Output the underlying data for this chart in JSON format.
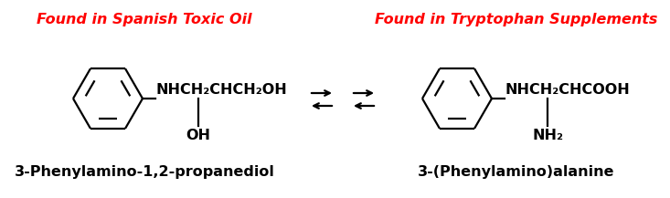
{
  "title_left": "Found in Spanish Toxic Oil",
  "title_right": "Found in Tryptophan Supplements",
  "title_color": "#ff0000",
  "title_fontsize": 11.5,
  "title_style": "italic",
  "title_weight": "bold",
  "name_left": "3-Phenylamino-1,2-propanediol",
  "name_right": "3-(Phenylamino)alanine",
  "name_fontsize": 11.5,
  "name_weight": "bold",
  "formula_left_main": "NHCH₂CHCH₂OH",
  "formula_left_sub": "OH",
  "formula_right_main": "NHCH₂CHCOOH",
  "formula_right_sub": "NH₂",
  "bg_color": "#ffffff",
  "line_color": "#000000",
  "formula_fontsize": 11.5,
  "formula_weight": "bold"
}
